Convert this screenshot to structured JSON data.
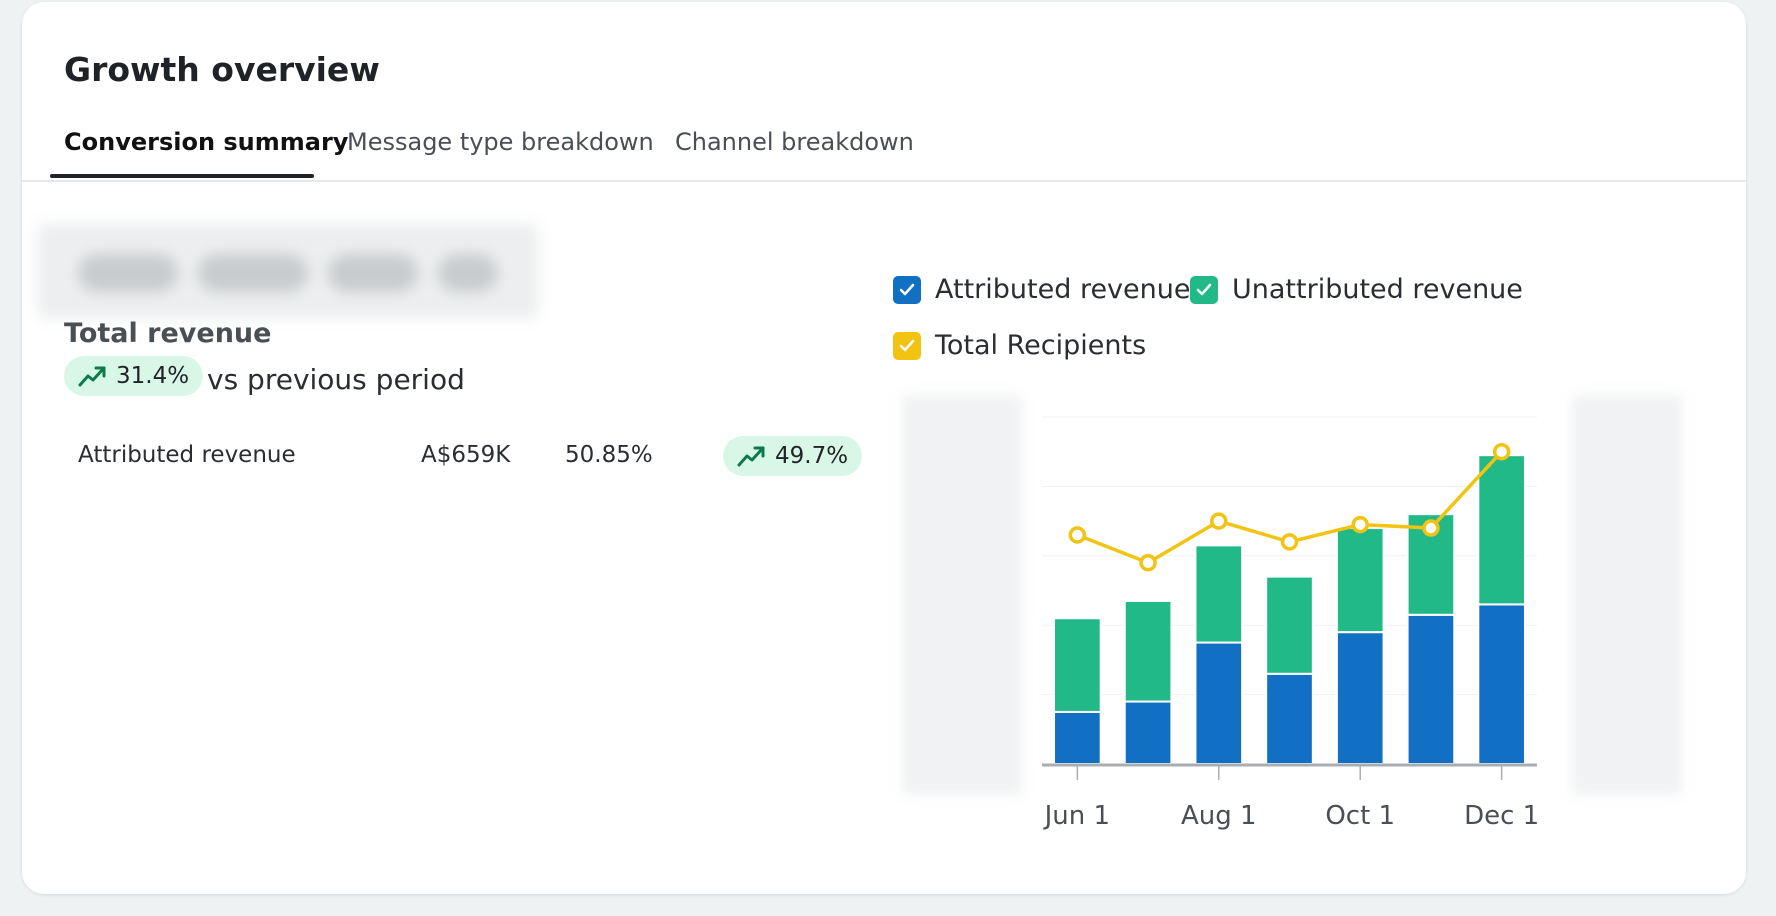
{
  "card": {
    "title": "Growth overview"
  },
  "tabs": [
    {
      "label": "Conversion summary",
      "active": true
    },
    {
      "label": "Message type breakdown",
      "active": false
    },
    {
      "label": "Channel breakdown",
      "active": false
    }
  ],
  "summary": {
    "label": "Total revenue",
    "change": "31.4%",
    "comparison": "vs previous period"
  },
  "breakdown_row": {
    "name": "Attributed revenue",
    "value": "A$659K",
    "share": "50.85%",
    "change": "49.7%"
  },
  "legend": [
    {
      "label": "Attributed revenue",
      "color": "#1170c4",
      "checked": true
    },
    {
      "label": "Unattributed revenue",
      "color": "#21b988",
      "checked": true
    },
    {
      "label": "Total Recipients",
      "color": "#f3c312",
      "checked": true
    }
  ],
  "chart_data": {
    "type": "bar",
    "stacked": true,
    "x_ticks": [
      "Jun 1",
      "Aug 1",
      "Oct 1",
      "Dec 1"
    ],
    "series": [
      {
        "name": "Attributed revenue",
        "values": [
          15,
          18,
          35,
          26,
          38,
          43,
          46
        ],
        "color": "#1170c4"
      },
      {
        "name": "Unattributed revenue",
        "values": [
          27,
          29,
          28,
          28,
          30,
          29,
          43
        ],
        "color": "#21b988"
      },
      {
        "name": "Total Recipients",
        "type": "line",
        "values": [
          66,
          58,
          70,
          64,
          69,
          68,
          90
        ],
        "color": "#f3c312"
      }
    ],
    "ylim": [
      0,
      100
    ],
    "tick_bar_index": [
      0,
      2,
      4,
      6
    ]
  }
}
